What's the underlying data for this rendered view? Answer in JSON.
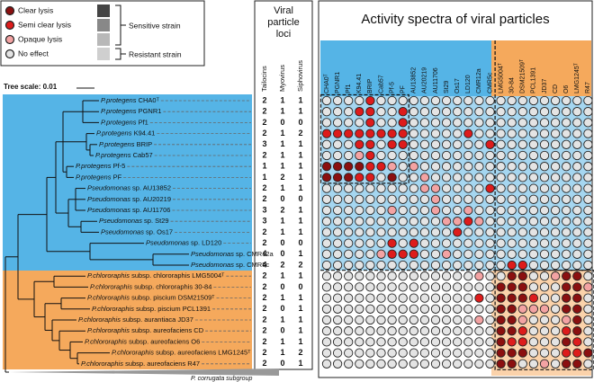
{
  "legend": {
    "items": [
      {
        "label": "Clear lysis",
        "color": "#8b1010"
      },
      {
        "label": "Semi clear lysis",
        "color": "#dd1c1c"
      },
      {
        "label": "Opaque lysis",
        "color": "#f3a3a3"
      },
      {
        "label": "No effect",
        "color": "#e4e4e4"
      }
    ],
    "sensitive": "Sensitive strain",
    "resistant": "Resistant strain"
  },
  "tree_scale": "Tree scale: 0.01",
  "outgroup": "P. corrugata subgroup",
  "loci": {
    "title": [
      "Viral",
      "particle",
      "loci"
    ],
    "headers": [
      "Tailocins",
      "Myovirus",
      "Siphovirus"
    ]
  },
  "matrix_title": "Activity spectra of viral particles",
  "columns": [
    "CHA0ᵀ",
    "PGNR1",
    "Pf1",
    "K94.41",
    "BRIP",
    "Cab57",
    "Pf-5",
    "PF",
    "AU13852",
    "AU20219",
    "AU11706",
    "St29",
    "Os17",
    "LD120",
    "CMR12a",
    "CMR5c",
    "LMG5004ᵀ",
    "30-84",
    "DSM21509ᵀ",
    "PCL1391",
    "JD37",
    "CD",
    "O6",
    "LMG1245ᵀ",
    "R47"
  ],
  "strains": [
    {
      "species": "P.protegens",
      "strain": "CHA0ᵀ",
      "loci": [
        2,
        1,
        1
      ]
    },
    {
      "species": "P.protegens",
      "strain": "PGNR1",
      "loci": [
        2,
        1,
        1
      ]
    },
    {
      "species": "P.protegens",
      "strain": "Pf1",
      "loci": [
        2,
        0,
        0
      ]
    },
    {
      "species": "P.protegens",
      "strain": "K94.41",
      "loci": [
        2,
        1,
        2
      ]
    },
    {
      "species": "P.protegens",
      "strain": "BRIP",
      "loci": [
        3,
        1,
        1
      ]
    },
    {
      "species": "P.protegens",
      "strain": "Cab57",
      "loci": [
        2,
        1,
        1
      ]
    },
    {
      "species": "P.protegens",
      "strain": "Pf-5",
      "loci": [
        1,
        1,
        1
      ]
    },
    {
      "species": "P.protegens",
      "strain": "PF",
      "loci": [
        1,
        2,
        1
      ]
    },
    {
      "species": "Pseudomonas",
      "strain": "sp. AU13852",
      "loci": [
        2,
        1,
        1
      ]
    },
    {
      "species": "Pseudomonas",
      "strain": "sp. AU20219",
      "loci": [
        2,
        0,
        0
      ]
    },
    {
      "species": "Pseudomonas",
      "strain": "sp. AU11706",
      "loci": [
        3,
        2,
        1
      ]
    },
    {
      "species": "Pseudomonas",
      "strain": "sp. St29",
      "loci": [
        3,
        1,
        1
      ]
    },
    {
      "species": "Pseudomonas",
      "strain": "sp. Os17",
      "loci": [
        2,
        1,
        1
      ]
    },
    {
      "species": "Pseudomonas",
      "strain": "sp. LD120",
      "loci": [
        2,
        0,
        0
      ]
    },
    {
      "species": "Pseudomonas",
      "strain": "sp. CMR12a",
      "loci": [
        4,
        0,
        1
      ]
    },
    {
      "species": "Pseudomonas",
      "strain": "sp. CMR5c",
      "loci": [
        4,
        2,
        2
      ]
    },
    {
      "species": "P.chlororaphis",
      "strain": "subsp. chlororaphis LMG5004ᵀ",
      "loci": [
        2,
        1,
        1
      ]
    },
    {
      "species": "P.chlororaphis",
      "strain": "subsp. chlororaphis 30-84",
      "loci": [
        2,
        0,
        0
      ]
    },
    {
      "species": "P.chlororaphis",
      "strain": "subsp. piscium DSM21509ᵀ",
      "loci": [
        2,
        1,
        1
      ]
    },
    {
      "species": "P.chlororaphis",
      "strain": "subsp. piscium PCL1391",
      "loci": [
        2,
        0,
        1
      ]
    },
    {
      "species": "P.chlororaphis",
      "strain": "subsp. aurantiaca JD37",
      "loci": [
        2,
        1,
        1
      ]
    },
    {
      "species": "P.chlororaphis",
      "strain": "subsp. aureofaciens CD",
      "loci": [
        2,
        0,
        1
      ]
    },
    {
      "species": "P.chlororaphis",
      "strain": "subsp. aureofaciens O6",
      "loci": [
        2,
        1,
        1
      ]
    },
    {
      "species": "P.chlororaphis",
      "strain": "subsp. aureofaciens LMG1245ᵀ",
      "loci": [
        2,
        1,
        2
      ]
    },
    {
      "species": "P.chlororaphis",
      "strain": "subsp. aureofaciens R47",
      "loci": [
        2,
        0,
        1
      ]
    }
  ],
  "matrix": [
    [
      0,
      0,
      0,
      0,
      2,
      0,
      0,
      0,
      0,
      0,
      0,
      0,
      0,
      0,
      0,
      0,
      0,
      0,
      0,
      0,
      0,
      0,
      0,
      0,
      0
    ],
    [
      0,
      0,
      0,
      2,
      2,
      0,
      0,
      2,
      0,
      0,
      0,
      0,
      0,
      0,
      0,
      0,
      0,
      0,
      0,
      0,
      0,
      0,
      0,
      0,
      0
    ],
    [
      0,
      0,
      0,
      0,
      2,
      0,
      0,
      2,
      0,
      0,
      0,
      0,
      0,
      0,
      0,
      0,
      0,
      0,
      0,
      0,
      0,
      0,
      0,
      0,
      0
    ],
    [
      2,
      2,
      2,
      2,
      2,
      2,
      2,
      2,
      0,
      0,
      0,
      0,
      0,
      2,
      0,
      0,
      0,
      0,
      0,
      0,
      0,
      0,
      0,
      0,
      0
    ],
    [
      0,
      0,
      0,
      2,
      2,
      0,
      2,
      2,
      0,
      0,
      0,
      0,
      0,
      0,
      0,
      2,
      0,
      0,
      0,
      0,
      0,
      0,
      0,
      0,
      0
    ],
    [
      0,
      0,
      0,
      1,
      2,
      0,
      0,
      0,
      0,
      0,
      0,
      0,
      0,
      0,
      0,
      0,
      0,
      0,
      0,
      0,
      0,
      0,
      0,
      0,
      0
    ],
    [
      3,
      3,
      3,
      3,
      2,
      2,
      1,
      0,
      1,
      0,
      0,
      0,
      0,
      0,
      0,
      0,
      0,
      0,
      0,
      0,
      0,
      0,
      0,
      0,
      0
    ],
    [
      3,
      3,
      3,
      2,
      2,
      0,
      3,
      0,
      0,
      1,
      0,
      0,
      0,
      0,
      0,
      0,
      0,
      0,
      0,
      0,
      0,
      0,
      0,
      0,
      0
    ],
    [
      0,
      0,
      0,
      0,
      0,
      0,
      0,
      0,
      0,
      1,
      1,
      0,
      0,
      0,
      0,
      2,
      0,
      0,
      0,
      0,
      0,
      0,
      0,
      0,
      0
    ],
    [
      0,
      0,
      0,
      0,
      0,
      0,
      0,
      0,
      0,
      0,
      1,
      0,
      0,
      0,
      0,
      0,
      0,
      0,
      0,
      0,
      0,
      0,
      0,
      0,
      0
    ],
    [
      0,
      0,
      0,
      0,
      0,
      0,
      1,
      0,
      0,
      0,
      1,
      0,
      0,
      1,
      0,
      0,
      0,
      0,
      0,
      0,
      0,
      0,
      0,
      0,
      0
    ],
    [
      0,
      0,
      0,
      0,
      0,
      0,
      0,
      0,
      0,
      0,
      0,
      1,
      1,
      2,
      1,
      0,
      0,
      0,
      0,
      0,
      0,
      0,
      0,
      0,
      0
    ],
    [
      0,
      0,
      0,
      0,
      0,
      0,
      0,
      0,
      0,
      0,
      0,
      0,
      2,
      0,
      0,
      0,
      0,
      0,
      0,
      0,
      0,
      0,
      0,
      0,
      0
    ],
    [
      0,
      0,
      0,
      0,
      0,
      0,
      2,
      0,
      2,
      0,
      0,
      0,
      0,
      0,
      0,
      0,
      0,
      0,
      0,
      0,
      0,
      0,
      0,
      0,
      0
    ],
    [
      0,
      0,
      0,
      0,
      0,
      1,
      2,
      2,
      2,
      0,
      0,
      1,
      0,
      0,
      0,
      0,
      0,
      0,
      0,
      0,
      0,
      0,
      0,
      0,
      0
    ],
    [
      0,
      0,
      0,
      0,
      0,
      0,
      0,
      0,
      0,
      0,
      0,
      0,
      0,
      0,
      0,
      0,
      0,
      2,
      2,
      0,
      0,
      0,
      0,
      0,
      0
    ],
    [
      0,
      0,
      0,
      0,
      0,
      0,
      0,
      0,
      0,
      0,
      0,
      0,
      0,
      0,
      1,
      0,
      0,
      3,
      3,
      0,
      0,
      1,
      3,
      3,
      0
    ],
    [
      0,
      0,
      0,
      0,
      0,
      0,
      0,
      0,
      0,
      0,
      0,
      0,
      0,
      0,
      0,
      0,
      3,
      3,
      3,
      0,
      0,
      0,
      3,
      3,
      1
    ],
    [
      0,
      0,
      0,
      0,
      0,
      0,
      0,
      0,
      0,
      0,
      0,
      0,
      0,
      0,
      2,
      0,
      3,
      3,
      3,
      2,
      0,
      0,
      3,
      3,
      0
    ],
    [
      0,
      0,
      0,
      0,
      0,
      0,
      0,
      0,
      0,
      0,
      0,
      0,
      0,
      0,
      0,
      0,
      3,
      3,
      1,
      1,
      1,
      0,
      3,
      3,
      0
    ],
    [
      0,
      0,
      0,
      0,
      0,
      0,
      0,
      0,
      0,
      0,
      0,
      0,
      0,
      0,
      1,
      0,
      3,
      3,
      1,
      0,
      0,
      0,
      1,
      3,
      0
    ],
    [
      0,
      0,
      0,
      0,
      0,
      0,
      0,
      0,
      0,
      0,
      0,
      0,
      0,
      0,
      0,
      0,
      3,
      3,
      2,
      0,
      0,
      0,
      2,
      3,
      0
    ],
    [
      0,
      0,
      0,
      0,
      0,
      0,
      0,
      0,
      0,
      0,
      0,
      0,
      0,
      0,
      0,
      0,
      3,
      2,
      2,
      0,
      0,
      0,
      3,
      2,
      0
    ],
    [
      0,
      0,
      0,
      0,
      0,
      0,
      0,
      0,
      0,
      0,
      0,
      0,
      0,
      0,
      0,
      0,
      3,
      3,
      3,
      0,
      0,
      0,
      2,
      2,
      3
    ],
    [
      0,
      0,
      0,
      0,
      0,
      0,
      0,
      0,
      0,
      0,
      0,
      0,
      0,
      0,
      0,
      0,
      3,
      3,
      0,
      0,
      1,
      0,
      3,
      3,
      0
    ]
  ]
}
